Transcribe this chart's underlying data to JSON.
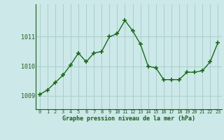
{
  "x": [
    0,
    1,
    2,
    3,
    4,
    5,
    6,
    7,
    8,
    9,
    10,
    11,
    12,
    13,
    14,
    15,
    16,
    17,
    18,
    19,
    20,
    21,
    22,
    23
  ],
  "y": [
    1009.05,
    1009.2,
    1009.45,
    1009.7,
    1010.05,
    1010.45,
    1010.15,
    1010.45,
    1010.5,
    1011.0,
    1011.1,
    1011.55,
    1011.2,
    1010.75,
    1010.0,
    1009.95,
    1009.55,
    1009.55,
    1009.55,
    1009.8,
    1009.8,
    1009.85,
    1010.15,
    1010.8
  ],
  "line_color": "#1a6b1a",
  "marker_color": "#1a6b1a",
  "bg_color": "#cce8e8",
  "grid_color": "#aacece",
  "xlabel": "Graphe pression niveau de la mer (hPa)",
  "xlabel_color": "#1a5c1a",
  "tick_color": "#1a5c1a",
  "yticks": [
    1009,
    1010,
    1011
  ],
  "ylim": [
    1008.55,
    1012.1
  ],
  "xlim": [
    -0.5,
    23.5
  ],
  "xticks": [
    0,
    1,
    2,
    3,
    4,
    5,
    6,
    7,
    8,
    9,
    10,
    11,
    12,
    13,
    14,
    15,
    16,
    17,
    18,
    19,
    20,
    21,
    22,
    23
  ]
}
